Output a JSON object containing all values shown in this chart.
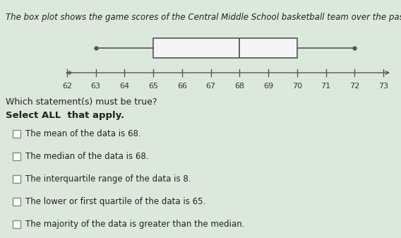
{
  "title": "The box plot shows the game scores of the Central Middle School basketball team over the past two seasons.",
  "title_fontsize": 8.5,
  "whisker_min": 63,
  "q1": 65,
  "median": 68,
  "q3": 70,
  "whisker_max": 72,
  "xmin": 61.3,
  "xmax": 73.8,
  "xticks": [
    62,
    63,
    64,
    65,
    66,
    67,
    68,
    69,
    70,
    71,
    72,
    73
  ],
  "bg_color": "#dce8dc",
  "box_fill": "#f5f5f5",
  "box_edge": "#555555",
  "line_color": "#555555",
  "question": "Which statement(s) must be true?",
  "select_label": "Select ALL  that apply.",
  "options": [
    "The mean of the data is 68.",
    "The median of the data is 68.",
    "The interquartile range of the data is 8.",
    "The lower or first quartile of the data is 65.",
    "The majority of the data is greater than the median."
  ],
  "option_fontsize": 8.5,
  "question_fontsize": 9,
  "select_fontsize": 9.5
}
